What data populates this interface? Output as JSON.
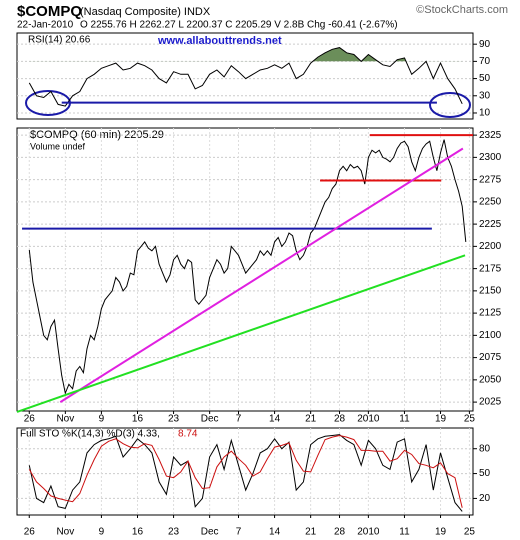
{
  "header": {
    "symbol": "$COMPQ",
    "name": "(Nasdaq Composite) INDX",
    "copyright": "©StockCharts.com",
    "date": "22-Jan-2010",
    "ohlc": "O 2255.76  H 2262.27  L 2200.37  C 2205.29  V 2.8B  Chg -60.41 (-2.67%)"
  },
  "chart_data": [
    {
      "type": "line",
      "title": "RSI(14) 20.66",
      "annotation_text": "www.allabouttrends.net",
      "xlim": [
        -1.7,
        61.5
      ],
      "ylim": [
        3,
        103
      ],
      "yticks": [
        10,
        30,
        50,
        70,
        90
      ],
      "grid": true,
      "overbought": 70,
      "overbought_color": "#6b8e5a",
      "x": [
        0,
        1,
        2,
        3,
        4,
        5,
        6,
        7,
        8,
        9,
        10,
        11,
        12,
        13,
        14,
        15,
        16,
        17,
        18,
        19,
        20,
        21,
        22,
        23,
        24,
        25,
        26,
        27,
        28,
        29,
        30,
        31,
        32,
        33,
        34,
        35,
        36,
        37,
        38,
        39,
        40,
        41,
        42,
        43,
        44,
        45,
        46,
        47,
        48,
        49,
        50,
        51,
        52,
        53,
        54,
        55,
        56,
        57,
        58,
        59,
        60
      ],
      "series": [
        {
          "color": "#000000",
          "values": [
            45,
            30,
            28,
            35,
            20,
            18,
            30,
            35,
            50,
            55,
            62,
            65,
            68,
            60,
            62,
            68,
            65,
            60,
            50,
            45,
            58,
            55,
            55,
            38,
            42,
            55,
            60,
            52,
            65,
            58,
            50,
            55,
            60,
            62,
            66,
            62,
            68,
            50,
            55,
            68,
            75,
            80,
            84,
            86,
            80,
            78,
            70,
            78,
            72,
            66,
            64,
            72,
            74,
            55,
            62,
            70,
            50,
            68,
            50,
            38,
            20.66
          ]
        }
      ],
      "annotations": [
        {
          "x": [
            4.5,
            56.5
          ],
          "y": [
            22,
            22
          ],
          "color": "#1a1aa8"
        }
      ]
    },
    {
      "type": "line",
      "title": "$COMPQ (60 min) 2205.29",
      "subtitle": "Volume undef",
      "xlim": [
        -1.7,
        61.5
      ],
      "ylim": [
        2015,
        2333
      ],
      "yticks": [
        2025,
        2050,
        2075,
        2100,
        2125,
        2150,
        2175,
        2200,
        2225,
        2250,
        2275,
        2300,
        2325
      ],
      "grid": true,
      "xticks": [
        {
          "value": 0,
          "label": "26"
        },
        {
          "value": 5,
          "label": "Nov"
        },
        {
          "value": 10,
          "label": "9"
        },
        {
          "value": 15,
          "label": "16"
        },
        {
          "value": 20,
          "label": "23"
        },
        {
          "value": 25,
          "label": "Dec"
        },
        {
          "value": 29,
          "label": "7"
        },
        {
          "value": 34,
          "label": "14"
        },
        {
          "value": 39,
          "label": "21"
        },
        {
          "value": 43,
          "label": "28"
        },
        {
          "value": 47,
          "label": "2010"
        },
        {
          "value": 52,
          "label": "11"
        },
        {
          "value": 57,
          "label": "19"
        },
        {
          "value": 61,
          "label": "25"
        }
      ],
      "x": [
        0,
        0.5,
        1,
        1.5,
        2,
        2.5,
        3,
        3.5,
        4,
        4.5,
        5,
        5.5,
        6,
        6.5,
        7,
        7.5,
        8,
        8.5,
        9,
        9.5,
        10,
        10.5,
        11,
        11.5,
        12,
        12.5,
        13,
        13.5,
        14,
        14.5,
        15,
        15.5,
        16,
        16.5,
        17,
        17.5,
        18,
        18.5,
        19,
        19.5,
        20,
        20.5,
        21,
        21.5,
        22,
        22.5,
        23,
        23.5,
        24,
        24.5,
        25,
        25.5,
        26,
        26.5,
        27,
        27.5,
        28,
        28.5,
        29,
        29.5,
        30,
        30.5,
        31,
        31.5,
        32,
        32.5,
        33,
        33.5,
        34,
        34.5,
        35,
        35.5,
        36,
        36.5,
        37,
        37.5,
        38,
        38.5,
        39,
        39.5,
        40,
        40.5,
        41,
        41.5,
        42,
        42.5,
        43,
        43.5,
        44,
        44.5,
        45,
        45.5,
        46,
        46.5,
        47,
        47.5,
        48,
        48.5,
        49,
        49.5,
        50,
        50.5,
        51,
        51.5,
        52,
        52.5,
        53,
        53.5,
        54,
        54.5,
        55,
        55.5,
        56,
        56.5,
        57,
        57.5,
        58,
        58.5,
        59,
        59.5,
        60,
        60.5
      ],
      "series": [
        {
          "color": "#000000",
          "values": [
            2196,
            2160,
            2140,
            2120,
            2100,
            2095,
            2110,
            2117,
            2085,
            2055,
            2035,
            2045,
            2040,
            2060,
            2065,
            2058,
            2085,
            2100,
            2095,
            2110,
            2130,
            2140,
            2145,
            2150,
            2165,
            2160,
            2150,
            2155,
            2170,
            2168,
            2195,
            2200,
            2205,
            2198,
            2195,
            2200,
            2180,
            2170,
            2160,
            2168,
            2185,
            2190,
            2180,
            2175,
            2185,
            2182,
            2140,
            2135,
            2140,
            2145,
            2165,
            2175,
            2185,
            2180,
            2170,
            2175,
            2200,
            2195,
            2190,
            2180,
            2170,
            2175,
            2180,
            2185,
            2195,
            2190,
            2195,
            2190,
            2205,
            2210,
            2200,
            2205,
            2215,
            2212,
            2195,
            2185,
            2190,
            2200,
            2215,
            2220,
            2230,
            2240,
            2250,
            2255,
            2265,
            2270,
            2285,
            2290,
            2285,
            2292,
            2288,
            2290,
            2285,
            2270,
            2300,
            2308,
            2305,
            2308,
            2300,
            2298,
            2295,
            2300,
            2310,
            2316,
            2318,
            2312,
            2295,
            2285,
            2300,
            2310,
            2315,
            2318,
            2300,
            2285,
            2305,
            2320,
            2300,
            2290,
            2275,
            2262,
            2245,
            2205
          ]
        }
      ],
      "annotations": [
        {
          "x": [
            -1,
            55.8
          ],
          "y": [
            2220,
            2220
          ],
          "color": "#1a1aa8"
        },
        {
          "x": [
            47.2,
            61.5
          ],
          "y": [
            2325,
            2325
          ],
          "color": "#e01010"
        },
        {
          "x": [
            40.3,
            57.1
          ],
          "y": [
            2274,
            2274
          ],
          "color": "#e01010"
        },
        {
          "x": [
            4.3,
            60.1
          ],
          "y": [
            2025,
            2310
          ],
          "color": "#e020e0"
        },
        {
          "x": [
            -1.7,
            60.4
          ],
          "y": [
            2014,
            2190
          ],
          "color": "#22e022"
        }
      ]
    },
    {
      "type": "line",
      "title": "Full STO %K(14,3) %D(3) 4.33,",
      "title2": "8.74",
      "xlim": [
        -1.7,
        61.5
      ],
      "ylim": [
        0,
        105
      ],
      "yticks": [
        20,
        50,
        80
      ],
      "grid": true,
      "xticks": [
        {
          "value": 0,
          "label": "26"
        },
        {
          "value": 5,
          "label": "Nov"
        },
        {
          "value": 10,
          "label": "9"
        },
        {
          "value": 15,
          "label": "16"
        },
        {
          "value": 20,
          "label": "23"
        },
        {
          "value": 25,
          "label": "Dec"
        },
        {
          "value": 29,
          "label": "7"
        },
        {
          "value": 34,
          "label": "14"
        },
        {
          "value": 39,
          "label": "21"
        },
        {
          "value": 43,
          "label": "28"
        },
        {
          "value": 47,
          "label": "2010"
        },
        {
          "value": 52,
          "label": "11"
        },
        {
          "value": 57,
          "label": "19"
        },
        {
          "value": 61,
          "label": "25"
        }
      ],
      "x": [
        0,
        1,
        2,
        3,
        4,
        5,
        6,
        7,
        8,
        9,
        10,
        11,
        12,
        13,
        14,
        15,
        16,
        17,
        18,
        19,
        20,
        21,
        22,
        23,
        24,
        25,
        26,
        27,
        28,
        29,
        30,
        31,
        32,
        33,
        34,
        35,
        36,
        37,
        38,
        39,
        40,
        41,
        42,
        43,
        44,
        45,
        46,
        47,
        48,
        49,
        50,
        51,
        52,
        53,
        54,
        55,
        56,
        57,
        58,
        59,
        60
      ],
      "series": [
        {
          "color": "#000000",
          "values": [
            60,
            20,
            15,
            35,
            10,
            8,
            30,
            40,
            75,
            85,
            90,
            92,
            95,
            70,
            80,
            92,
            85,
            75,
            40,
            25,
            70,
            60,
            65,
            10,
            20,
            70,
            85,
            55,
            90,
            60,
            30,
            50,
            75,
            80,
            92,
            80,
            88,
            30,
            40,
            85,
            92,
            95,
            96,
            97,
            90,
            85,
            60,
            90,
            80,
            60,
            55,
            88,
            92,
            40,
            55,
            85,
            30,
            75,
            45,
            15,
            4.33
          ]
        },
        {
          "color": "#cc1010",
          "values": [
            55,
            40,
            32,
            23,
            20,
            18,
            16,
            26,
            48,
            67,
            83,
            89,
            92,
            86,
            82,
            81,
            86,
            84,
            67,
            47,
            45,
            52,
            65,
            45,
            32,
            33,
            58,
            70,
            77,
            68,
            60,
            47,
            52,
            68,
            82,
            84,
            87,
            66,
            53,
            52,
            72,
            91,
            94,
            96,
            94,
            91,
            78,
            78,
            77,
            77,
            65,
            68,
            78,
            73,
            62,
            60,
            57,
            63,
            50,
            45,
            8.74
          ]
        }
      ]
    }
  ]
}
